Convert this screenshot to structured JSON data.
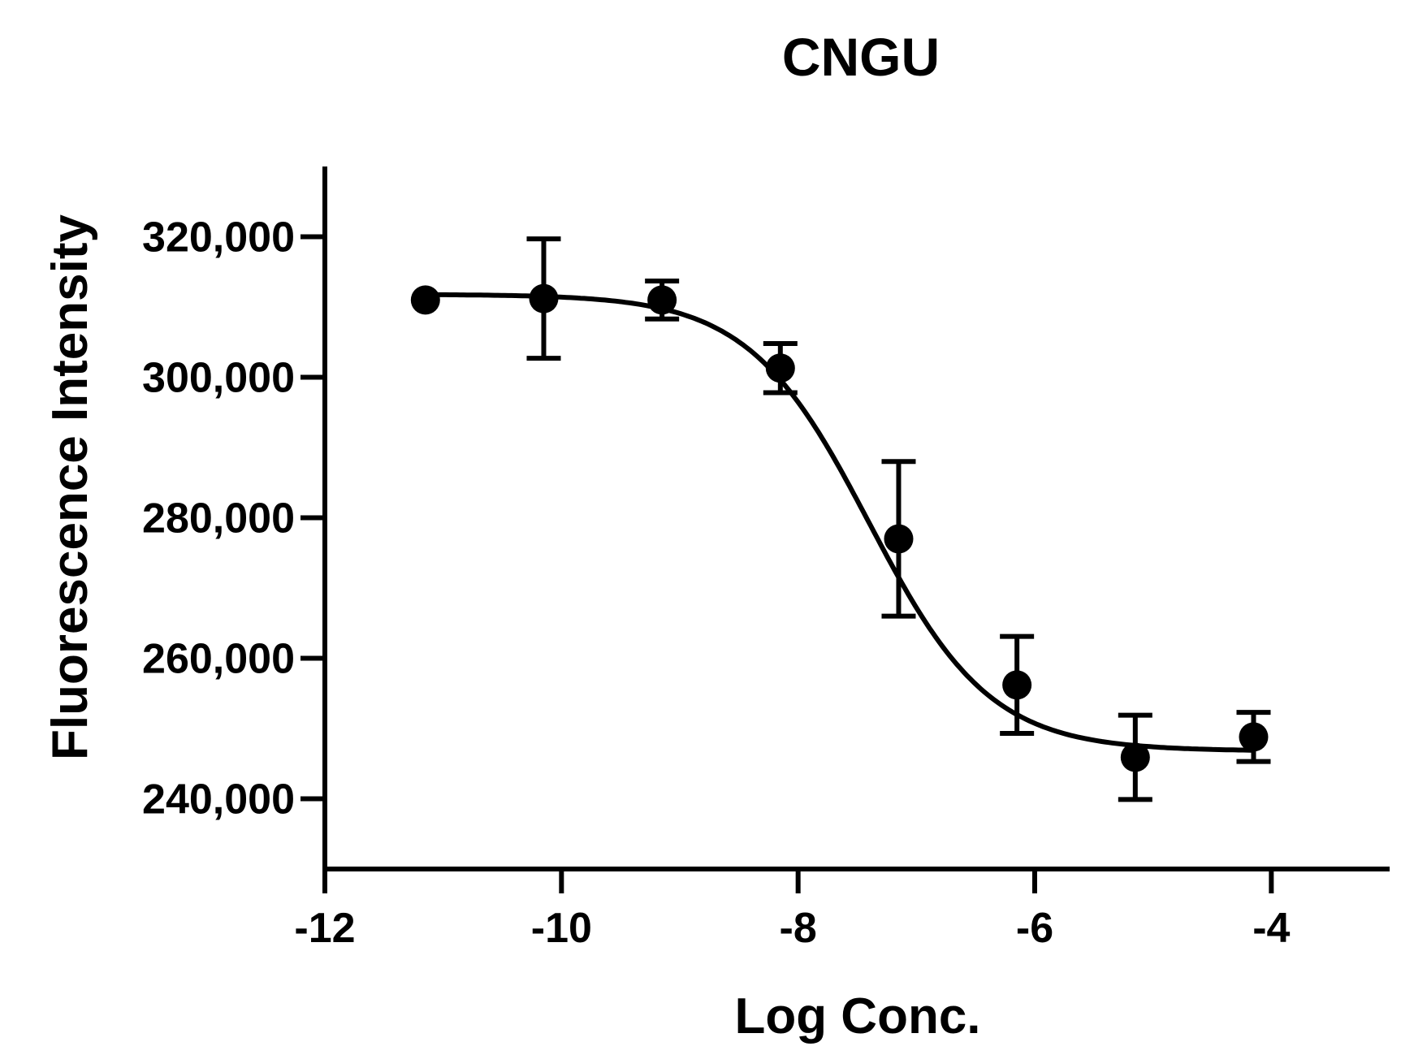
{
  "chart_data": {
    "type": "scatter",
    "title": "CNGU",
    "xlabel": "Log Conc.",
    "ylabel": "Fluorescence Intensity",
    "xlim": [
      -12,
      -3
    ],
    "ylim": [
      230000,
      330000
    ],
    "x_ticks": [
      -12,
      -10,
      -8,
      -6,
      -4
    ],
    "x_tick_labels": [
      "-12",
      "-10",
      "-8",
      "-6",
      "-4"
    ],
    "y_ticks": [
      240000,
      260000,
      280000,
      300000,
      320000
    ],
    "y_tick_labels": [
      "240,000",
      "260,000",
      "280,000",
      "300,000",
      "320,000"
    ],
    "grid": false,
    "legend": "none",
    "series": [
      {
        "points": [
          {
            "x": -11.15,
            "y": 311000,
            "err": 0
          },
          {
            "x": -10.15,
            "y": 311200,
            "err": 8500
          },
          {
            "x": -9.15,
            "y": 311000,
            "err": 2700
          },
          {
            "x": -8.15,
            "y": 301300,
            "err": 3500
          },
          {
            "x": -7.15,
            "y": 277000,
            "err": 11000
          },
          {
            "x": -6.15,
            "y": 256200,
            "err": 6900
          },
          {
            "x": -5.15,
            "y": 245900,
            "err": 6000
          },
          {
            "x": -4.15,
            "y": 248800,
            "err": 3500
          }
        ],
        "fit": {
          "model": "sigmoid",
          "top": 311800,
          "bottom": 246800,
          "logec50": -7.4,
          "hillslope": -0.85
        }
      }
    ],
    "color": "#000000"
  }
}
